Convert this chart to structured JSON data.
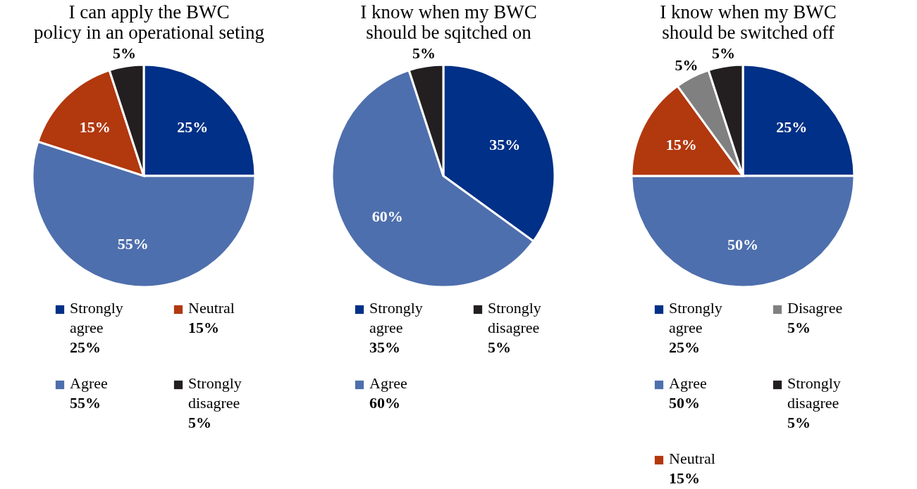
{
  "chart_data": [
    {
      "type": "pie",
      "title": "I can apply the BWC\npolicy in an operational seting",
      "categories": [
        "Strongly agree",
        "Agree",
        "Neutral",
        "Strongly disagree"
      ],
      "values": [
        25,
        55,
        15,
        5
      ],
      "value_labels": [
        "25%",
        "55%",
        "15%",
        "5%"
      ],
      "colors": [
        "#003087",
        "#4e6fad",
        "#b2380e",
        "#231f20"
      ],
      "legend": "bottom"
    },
    {
      "type": "pie",
      "title": "I know when my BWC\nshould be sqitched on",
      "categories": [
        "Strongly agree",
        "Agree",
        "Strongly disagree"
      ],
      "values": [
        35,
        60,
        5
      ],
      "value_labels": [
        "35%",
        "60%",
        "5%"
      ],
      "colors": [
        "#003087",
        "#4e6fad",
        "#231f20"
      ],
      "legend": "bottom"
    },
    {
      "type": "pie",
      "title": "I know when my BWC\nshould be switched off",
      "categories": [
        "Strongly agree",
        "Agree",
        "Neutral",
        "Disagree",
        "Strongly disagree"
      ],
      "values": [
        25,
        50,
        15,
        5,
        5
      ],
      "value_labels": [
        "25%",
        "50%",
        "15%",
        "5%",
        "5%"
      ],
      "colors": [
        "#003087",
        "#4e6fad",
        "#b2380e",
        "#808080",
        "#231f20"
      ],
      "legend": "bottom"
    }
  ]
}
